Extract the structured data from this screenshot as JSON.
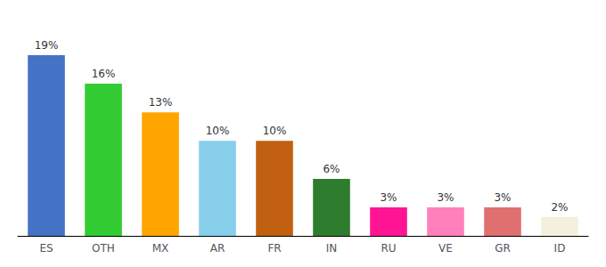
{
  "chart_data": {
    "type": "bar",
    "categories": [
      "ES",
      "OTH",
      "MX",
      "AR",
      "FR",
      "IN",
      "RU",
      "VE",
      "GR",
      "ID"
    ],
    "values": [
      19,
      16,
      13,
      10,
      10,
      6,
      3,
      3,
      3,
      2
    ],
    "value_labels": [
      "19%",
      "16%",
      "13%",
      "10%",
      "10%",
      "6%",
      "3%",
      "3%",
      "3%",
      "2%"
    ],
    "colors": [
      "#4472C4",
      "#33CC33",
      "#FFA500",
      "#87CEEB",
      "#C06010",
      "#2E7D2E",
      "#FF1493",
      "#FF80BB",
      "#E07070",
      "#F5F0DC"
    ],
    "ylim": [
      0,
      22
    ],
    "data_labels": true,
    "tick_labels": "x",
    "grid": false
  }
}
